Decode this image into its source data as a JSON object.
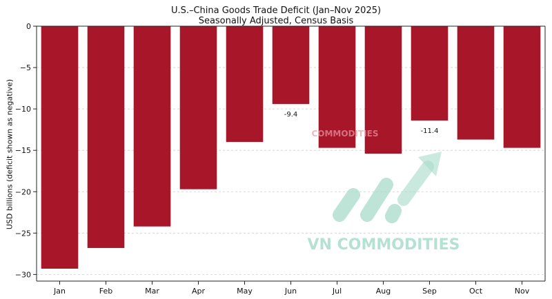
{
  "chart_data": {
    "type": "bar",
    "title": "U.S.–China Goods Trade Deficit (Jan–Nov 2025)",
    "subtitle": "Seasonally Adjusted, Census Basis",
    "xlabel": "",
    "ylabel": "USD billions (deficit shown as negative)",
    "categories": [
      "Jan",
      "Feb",
      "Mar",
      "Apr",
      "May",
      "Jun",
      "Jul",
      "Aug",
      "Sep",
      "Oct",
      "Nov"
    ],
    "values": [
      -29.3,
      -26.8,
      -24.2,
      -19.7,
      -14.0,
      -9.4,
      -14.7,
      -15.4,
      -11.4,
      -13.7,
      -14.7
    ],
    "ylim": [
      -30.8,
      0
    ],
    "yticks": [
      0,
      -5,
      -10,
      -15,
      -20,
      -25,
      -30
    ],
    "ytick_labels": [
      "0",
      "−5",
      "−10",
      "−15",
      "−20",
      "−25",
      "−30"
    ],
    "data_labels": [
      {
        "category": "Jun",
        "text": "-9.4"
      },
      {
        "category": "Sep",
        "text": "-11.4"
      }
    ],
    "grid": "horizontal dashed",
    "bar_color": "#a8162a"
  },
  "watermark": {
    "text": "VN COMMODITIES",
    "small_text": "COMMODITIES",
    "color": "#a8dcc9"
  }
}
